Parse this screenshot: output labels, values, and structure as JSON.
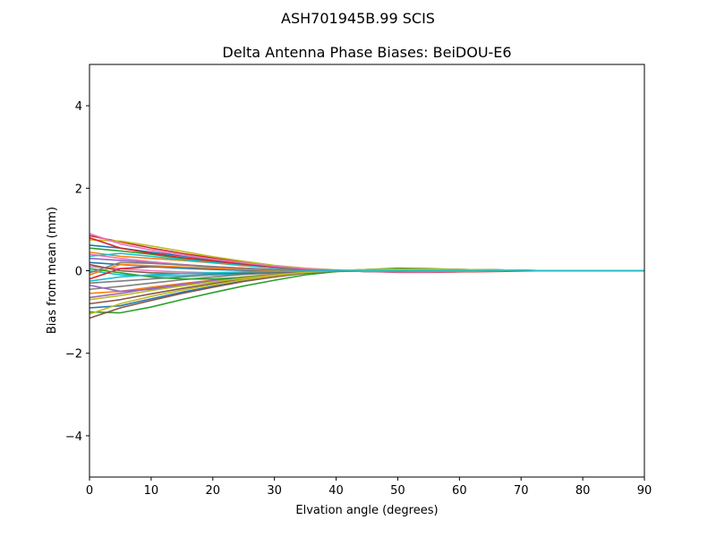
{
  "suptitle": "ASH701945B.99   SCIS",
  "chart_data": {
    "type": "line",
    "title": "Delta Antenna Phase Biases: BeiDOU-E6",
    "xlabel": "Elvation angle (degrees)",
    "ylabel": "Bias from mean (mm)",
    "xlim": [
      0,
      90
    ],
    "ylim": [
      -5,
      5
    ],
    "xticks": [
      0,
      10,
      20,
      30,
      40,
      50,
      60,
      70,
      80,
      90
    ],
    "yticks": [
      -4,
      -2,
      0,
      2,
      4
    ],
    "ytick_labels": [
      "−4",
      "−2",
      "0",
      "2",
      "4"
    ],
    "grid": false,
    "legend": "none",
    "x": [
      0,
      5,
      10,
      15,
      20,
      25,
      30,
      35,
      40,
      45,
      50,
      55,
      60,
      65,
      70,
      75,
      80,
      85,
      90
    ],
    "series": [
      {
        "color": "#1f77b4",
        "values": [
          0.62,
          0.55,
          0.45,
          0.36,
          0.27,
          0.18,
          0.1,
          0.04,
          0.0,
          -0.02,
          -0.03,
          -0.03,
          -0.02,
          -0.01,
          0,
          0,
          0,
          0,
          0
        ]
      },
      {
        "color": "#ff7f0e",
        "values": [
          -0.55,
          -0.5,
          -0.4,
          -0.31,
          -0.23,
          -0.15,
          -0.08,
          -0.03,
          0.0,
          0.02,
          0.03,
          0.02,
          0.02,
          0.01,
          0,
          0,
          0,
          0,
          0
        ]
      },
      {
        "color": "#2ca02c",
        "values": [
          -1.0,
          -1.02,
          -0.88,
          -0.7,
          -0.53,
          -0.37,
          -0.23,
          -0.1,
          -0.02,
          0.03,
          0.06,
          0.05,
          0.03,
          0.02,
          0.01,
          0,
          0,
          0,
          0
        ]
      },
      {
        "color": "#d62728",
        "values": [
          0.85,
          0.7,
          0.55,
          0.42,
          0.31,
          0.2,
          0.12,
          0.05,
          0.01,
          -0.02,
          -0.04,
          -0.04,
          -0.03,
          -0.02,
          -0.01,
          0,
          0,
          0,
          0
        ]
      },
      {
        "color": "#9467bd",
        "values": [
          0.3,
          0.25,
          0.2,
          0.15,
          0.1,
          0.06,
          0.03,
          0.01,
          0.0,
          -0.01,
          -0.02,
          -0.01,
          -0.01,
          0,
          0,
          0,
          0,
          0,
          0
        ]
      },
      {
        "color": "#8c564b",
        "values": [
          -0.8,
          -0.7,
          -0.56,
          -0.43,
          -0.31,
          -0.2,
          -0.11,
          -0.04,
          0.0,
          0.03,
          0.04,
          0.04,
          0.03,
          0.02,
          0.01,
          0,
          0,
          0,
          0
        ]
      },
      {
        "color": "#e377c2",
        "values": [
          0.1,
          0.05,
          0.0,
          -0.03,
          -0.05,
          -0.05,
          -0.04,
          -0.02,
          -0.01,
          0,
          0.01,
          0.01,
          0,
          0,
          0,
          0,
          0,
          0,
          0
        ]
      },
      {
        "color": "#7f7f7f",
        "values": [
          -0.3,
          -0.25,
          -0.2,
          -0.15,
          -0.1,
          -0.06,
          -0.03,
          -0.01,
          0,
          0.01,
          0.01,
          0.01,
          0,
          0,
          0,
          0,
          0,
          0,
          0
        ]
      },
      {
        "color": "#bcbd22",
        "values": [
          0.75,
          0.72,
          0.6,
          0.47,
          0.34,
          0.23,
          0.13,
          0.06,
          0.02,
          -0.01,
          -0.03,
          -0.03,
          -0.02,
          -0.01,
          0,
          0,
          0,
          0,
          0
        ]
      },
      {
        "color": "#17becf",
        "values": [
          0.0,
          -0.1,
          -0.12,
          -0.12,
          -0.1,
          -0.08,
          -0.05,
          -0.02,
          0,
          0.01,
          0.02,
          0.01,
          0.01,
          0,
          0,
          0,
          0,
          0,
          0
        ]
      },
      {
        "color": "#1f77b4",
        "values": [
          -0.9,
          -0.85,
          -0.68,
          -0.52,
          -0.38,
          -0.25,
          -0.14,
          -0.06,
          -0.01,
          0.02,
          0.04,
          0.04,
          0.03,
          0.02,
          0.01,
          0,
          0,
          0,
          0
        ]
      },
      {
        "color": "#ff7f0e",
        "values": [
          0.45,
          0.35,
          0.3,
          0.25,
          0.19,
          0.12,
          0.07,
          0.03,
          0.01,
          -0.01,
          -0.02,
          -0.02,
          -0.01,
          -0.01,
          0,
          0,
          0,
          0,
          0
        ]
      },
      {
        "color": "#2ca02c",
        "values": [
          0.55,
          0.48,
          0.4,
          0.3,
          0.22,
          0.14,
          0.08,
          0.03,
          0.0,
          -0.02,
          -0.03,
          -0.02,
          -0.02,
          -0.01,
          0,
          0,
          0,
          0,
          0
        ]
      },
      {
        "color": "#d62728",
        "values": [
          -0.2,
          0.05,
          0.1,
          0.08,
          0.06,
          0.04,
          0.02,
          0.01,
          0,
          0,
          0,
          0,
          0,
          0,
          0,
          0,
          0,
          0,
          0
        ]
      },
      {
        "color": "#9467bd",
        "values": [
          -0.65,
          -0.55,
          -0.43,
          -0.33,
          -0.24,
          -0.16,
          -0.09,
          -0.03,
          0.0,
          0.02,
          0.03,
          0.02,
          0.02,
          0.01,
          0,
          0,
          0,
          0,
          0
        ]
      },
      {
        "color": "#8c564b",
        "values": [
          -1.15,
          -0.9,
          -0.72,
          -0.55,
          -0.4,
          -0.26,
          -0.15,
          -0.06,
          -0.01,
          0.02,
          0.04,
          0.04,
          0.03,
          0.02,
          0.01,
          0,
          0,
          0,
          0
        ]
      },
      {
        "color": "#e377c2",
        "values": [
          0.4,
          0.3,
          0.22,
          0.15,
          0.09,
          0.05,
          0.02,
          0.0,
          -0.01,
          -0.01,
          -0.01,
          -0.01,
          0,
          0,
          0,
          0,
          0,
          0,
          0
        ]
      },
      {
        "color": "#7f7f7f",
        "values": [
          -0.45,
          -0.38,
          -0.3,
          -0.22,
          -0.15,
          -0.09,
          -0.05,
          -0.02,
          0,
          0.01,
          0.02,
          0.01,
          0.01,
          0,
          0,
          0,
          0,
          0,
          0
        ]
      },
      {
        "color": "#bcbd22",
        "values": [
          -1.05,
          -0.8,
          -0.62,
          -0.47,
          -0.34,
          -0.22,
          -0.12,
          -0.05,
          0.0,
          0.03,
          0.04,
          0.04,
          0.03,
          0.02,
          0.01,
          0,
          0,
          0,
          0
        ]
      },
      {
        "color": "#17becf",
        "values": [
          0.35,
          0.42,
          0.35,
          0.27,
          0.2,
          0.13,
          0.07,
          0.03,
          0.01,
          -0.01,
          -0.02,
          -0.02,
          -0.01,
          0,
          0,
          0,
          0,
          0,
          0
        ]
      },
      {
        "color": "#1f77b4",
        "values": [
          0.2,
          0.15,
          0.1,
          0.06,
          0.03,
          0.01,
          0.0,
          -0.01,
          -0.01,
          0,
          0,
          0,
          0,
          0,
          0,
          0,
          0,
          0,
          0
        ]
      },
      {
        "color": "#ff7f0e",
        "values": [
          -0.1,
          0.15,
          0.12,
          0.09,
          0.06,
          0.03,
          0.01,
          0.0,
          0,
          0,
          0,
          0,
          0,
          0,
          0,
          0,
          0,
          0,
          0
        ]
      },
      {
        "color": "#2ca02c",
        "values": [
          0.05,
          -0.05,
          -0.15,
          -0.2,
          -0.2,
          -0.16,
          -0.1,
          -0.05,
          -0.02,
          0.0,
          0.01,
          0.01,
          0.01,
          0,
          0,
          0,
          0,
          0,
          0
        ]
      },
      {
        "color": "#d62728",
        "values": [
          0.8,
          0.55,
          0.42,
          0.32,
          0.24,
          0.16,
          0.09,
          0.04,
          0.01,
          -0.01,
          -0.03,
          -0.03,
          -0.02,
          -0.01,
          0,
          0,
          0,
          0,
          0
        ]
      },
      {
        "color": "#9467bd",
        "values": [
          -0.35,
          -0.5,
          -0.45,
          -0.36,
          -0.27,
          -0.18,
          -0.1,
          -0.04,
          -0.01,
          0.01,
          0.02,
          0.02,
          0.01,
          0.01,
          0,
          0,
          0,
          0,
          0
        ]
      },
      {
        "color": "#8c564b",
        "values": [
          0.15,
          0.0,
          -0.05,
          -0.07,
          -0.07,
          -0.06,
          -0.04,
          -0.02,
          -0.01,
          0,
          0,
          0,
          0,
          0,
          0,
          0,
          0,
          0,
          0
        ]
      },
      {
        "color": "#e377c2",
        "values": [
          0.9,
          0.65,
          0.5,
          0.38,
          0.28,
          0.19,
          0.11,
          0.05,
          0.01,
          -0.02,
          -0.03,
          -0.03,
          -0.02,
          -0.01,
          0,
          0,
          0,
          0,
          0
        ]
      },
      {
        "color": "#7f7f7f",
        "values": [
          -0.05,
          0.2,
          0.18,
          0.14,
          0.1,
          0.06,
          0.03,
          0.01,
          0,
          0,
          -0.01,
          0,
          0,
          0,
          0,
          0,
          0,
          0,
          0
        ]
      },
      {
        "color": "#bcbd22",
        "values": [
          -0.7,
          -0.6,
          -0.48,
          -0.37,
          -0.27,
          -0.18,
          -0.1,
          -0.04,
          0.0,
          0.02,
          0.03,
          0.03,
          0.02,
          0.01,
          0,
          0,
          0,
          0,
          0
        ]
      },
      {
        "color": "#17becf",
        "values": [
          -0.25,
          -0.15,
          -0.1,
          -0.07,
          -0.05,
          -0.03,
          -0.02,
          -0.01,
          0,
          0,
          0,
          0,
          0,
          0,
          0,
          0,
          0,
          0,
          0
        ]
      }
    ]
  }
}
